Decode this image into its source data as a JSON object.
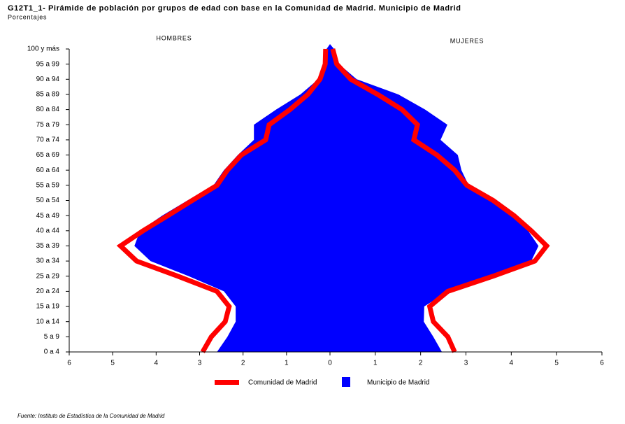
{
  "chart_data": {
    "type": "pyramid",
    "title": "G12T1_1- Pirámide de población por grupos de edad con base en la Comunidad de Madrid.  Municipio de Madrid",
    "subtitle": "Porcentajes",
    "left_label": "HOMBRES",
    "right_label": "MUJERES",
    "source": "Fuente: Instituto de Estadística de la Comunidad de Madrid",
    "categories": [
      "0 a 4",
      "5 a 9",
      "10 a 14",
      "15 a 19",
      "20 a 24",
      "25 a 29",
      "30 a 34",
      "35 a 39",
      "40 a 44",
      "45 a 49",
      "50 a 54",
      "55 a 59",
      "60 a 64",
      "65 a 69",
      "70 a 74",
      "75 a 79",
      "80 a 84",
      "85 a 89",
      "90 a 94",
      "95 a 99",
      "100 y más"
    ],
    "xlim": [
      0,
      6
    ],
    "xticks": [
      0,
      1,
      2,
      3,
      4,
      5,
      6
    ],
    "series": [
      {
        "name": "Municipio de Madrid",
        "color": "#0000ff",
        "style": "area",
        "hombres": [
          2.6,
          2.36,
          2.17,
          2.17,
          2.44,
          3.25,
          4.13,
          4.5,
          4.37,
          3.86,
          3.28,
          2.68,
          2.44,
          2.12,
          1.75,
          1.75,
          1.24,
          0.68,
          0.27,
          0.13,
          0.08
        ],
        "mujeres": [
          2.47,
          2.28,
          2.07,
          2.08,
          2.6,
          3.52,
          4.44,
          4.6,
          4.37,
          4.14,
          3.67,
          3.06,
          2.9,
          2.82,
          2.44,
          2.59,
          2.1,
          1.51,
          0.59,
          0.2,
          0.09
        ]
      },
      {
        "name": "Comunidad de Madrid",
        "color": "#ff0000",
        "style": "line",
        "hombres": [
          2.93,
          2.73,
          2.41,
          2.32,
          2.6,
          3.5,
          4.45,
          4.82,
          4.3,
          3.73,
          3.17,
          2.6,
          2.36,
          2.04,
          1.48,
          1.4,
          0.92,
          0.51,
          0.23,
          0.11,
          0.1
        ],
        "mujeres": [
          2.75,
          2.6,
          2.28,
          2.2,
          2.6,
          3.6,
          4.52,
          4.78,
          4.44,
          4.06,
          3.6,
          3.02,
          2.75,
          2.36,
          1.85,
          1.93,
          1.59,
          1.05,
          0.46,
          0.15,
          0.06
        ]
      }
    ]
  }
}
